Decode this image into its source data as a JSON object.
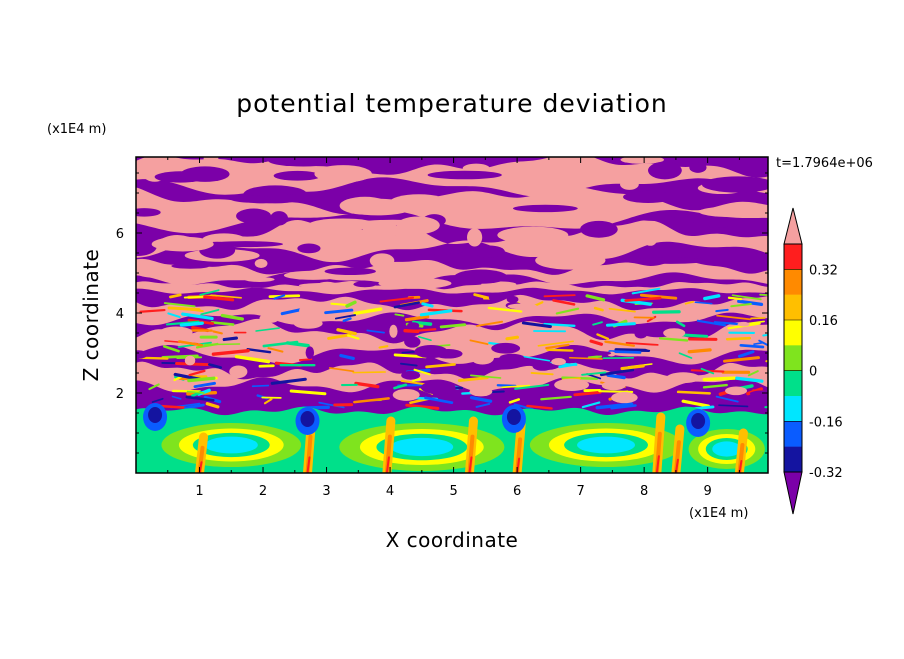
{
  "chart_data": {
    "type": "heatmap",
    "title": "potential temperature deviation",
    "xlabel": "X coordinate",
    "ylabel": "Z coordinate",
    "x_unit": "(x1E4 m)",
    "y_unit": "(x1E4 m)",
    "time_label": "t=1.7964e+06",
    "xlim": [
      0,
      9.95
    ],
    "ylim": [
      0,
      7.9
    ],
    "x_ticks": [
      "1",
      "2",
      "3",
      "4",
      "5",
      "6",
      "7",
      "8",
      "9"
    ],
    "y_ticks": [
      "2",
      "4",
      "6"
    ],
    "colorbar": {
      "levels": [
        -0.4,
        -0.32,
        -0.24,
        -0.16,
        -0.08,
        0,
        0.08,
        0.16,
        0.24,
        0.32,
        0.4
      ],
      "labels": [
        "0.32",
        "0.16",
        "0",
        "-0.16",
        "-0.32"
      ],
      "colors": [
        "#7b00a8",
        "#1414a0",
        "#0a5cff",
        "#00e6ff",
        "#00e08a",
        "#7fe41e",
        "#ffff00",
        "#ffbf00",
        "#ff8a00",
        "#ff1e1e",
        "#f5a0a0"
      ],
      "extend": "both"
    },
    "structure": {
      "description_layers": [
        {
          "z_range": [
            0,
            1.6
          ],
          "field": "near-zero cyan/green convective cells with warm (yellow/orange) plumes"
        },
        {
          "z_range": [
            1.6,
            4.5
          ],
          "field": "mixed layer of strong negative (purple) and positive (pink) anomalies with sharp multicolor fronts"
        },
        {
          "z_range": [
            4.5,
            7.9
          ],
          "field": "alternating purple and pink stratified layers"
        }
      ]
    }
  },
  "colors": {
    "background": "#ffffff",
    "axis": "#000000"
  }
}
